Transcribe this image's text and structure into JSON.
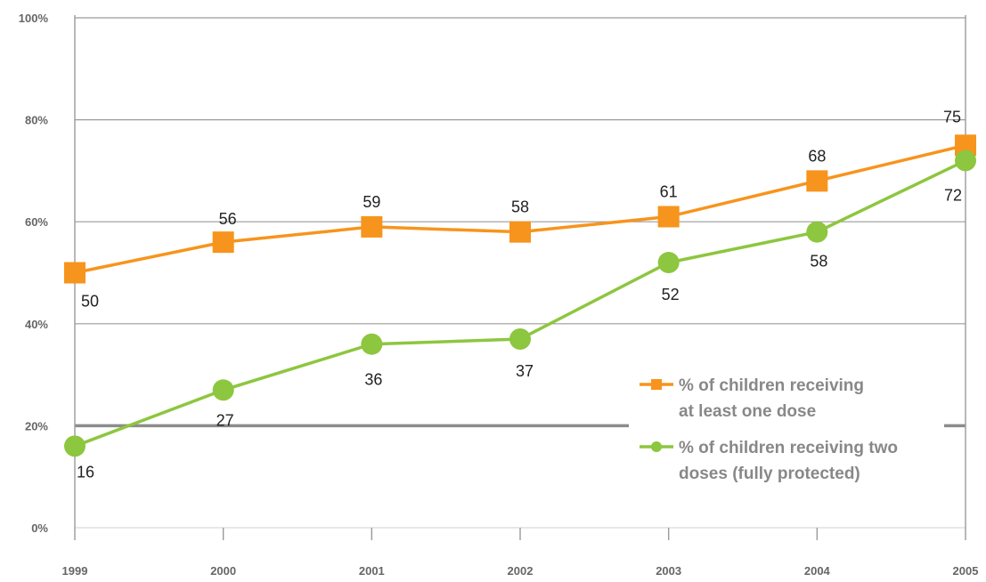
{
  "chart_data": {
    "type": "line",
    "categories": [
      "1999",
      "2000",
      "2001",
      "2002",
      "2003",
      "2004",
      "2005"
    ],
    "ylim": [
      0,
      100
    ],
    "yticks": [
      0,
      20,
      40,
      60,
      80,
      100
    ],
    "ytick_labels": [
      "0%",
      "20%",
      "40%",
      "60%",
      "80%",
      "100%"
    ],
    "grid": true,
    "legend_position": "bottom-right",
    "series": [
      {
        "name": "% of children receiving at least one dose",
        "legend_lines": [
          "% of children receiving",
          "at least one dose"
        ],
        "marker": "square",
        "color": "#f7941d",
        "values": [
          50,
          56,
          59,
          58,
          61,
          68,
          75
        ],
        "labels": [
          "50",
          "56",
          "59",
          "58",
          "61",
          "68",
          "75"
        ]
      },
      {
        "name": "% of children receiving two doses (fully protected)",
        "legend_lines": [
          "% of children receiving two",
          "doses (fully protected)"
        ],
        "marker": "circle",
        "color": "#8dc63f",
        "values": [
          16,
          27,
          36,
          37,
          52,
          58,
          72
        ],
        "labels": [
          "16",
          "27",
          "36",
          "37",
          "52",
          "58",
          "72"
        ]
      }
    ]
  }
}
